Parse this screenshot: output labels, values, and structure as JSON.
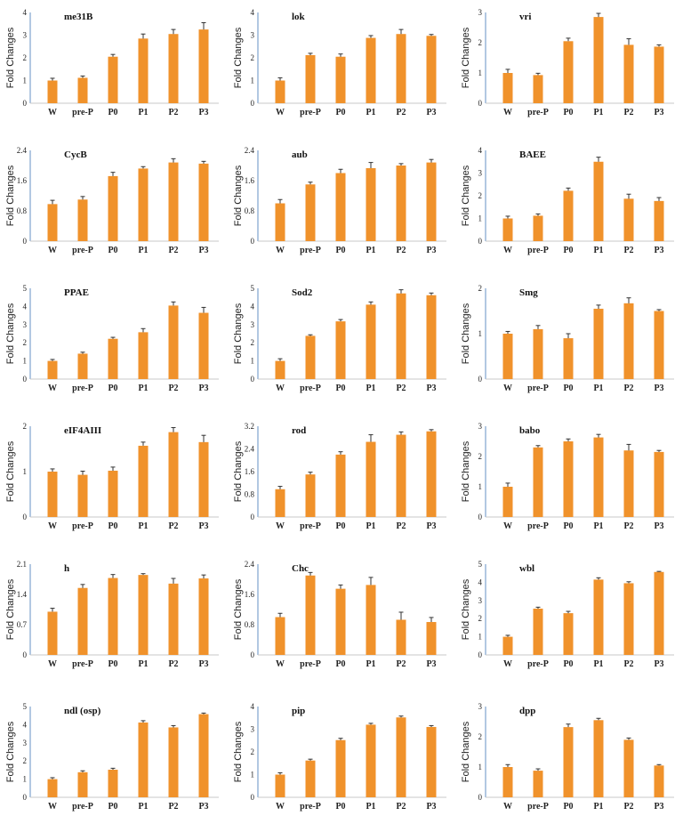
{
  "style": {
    "bar_color": "#f0922b",
    "axis_color": "#7fa3cf",
    "error_color": "#333333"
  },
  "chart_data": [
    {
      "type": "bar",
      "title": "me31B",
      "ylabel": "Fold Changes",
      "categories": [
        "W",
        "pre-P",
        "P0",
        "P1",
        "P2",
        "P3"
      ],
      "values": [
        1.0,
        1.12,
        2.05,
        2.85,
        3.05,
        3.25
      ],
      "errors": [
        0.1,
        0.08,
        0.1,
        0.2,
        0.2,
        0.3
      ],
      "ylim": [
        0,
        4
      ],
      "yticks": [
        "0",
        "1",
        "2",
        "3",
        "4"
      ]
    },
    {
      "type": "bar",
      "title": "lok",
      "ylabel": "Fold Changes",
      "categories": [
        "W",
        "pre-P",
        "P0",
        "P1",
        "P2",
        "P3"
      ],
      "values": [
        1.0,
        2.12,
        2.05,
        2.88,
        3.05,
        2.97
      ],
      "errors": [
        0.12,
        0.08,
        0.12,
        0.1,
        0.2,
        0.06
      ],
      "ylim": [
        0,
        4
      ],
      "yticks": [
        "0",
        "1",
        "2",
        "3",
        "4"
      ]
    },
    {
      "type": "bar",
      "title": "vri",
      "ylabel": "Fold Changes",
      "categories": [
        "W",
        "pre-P",
        "P0",
        "P1",
        "P2",
        "P3"
      ],
      "values": [
        1.0,
        0.93,
        2.05,
        2.85,
        1.93,
        1.87
      ],
      "errors": [
        0.12,
        0.06,
        0.1,
        0.12,
        0.2,
        0.06
      ],
      "ylim": [
        0,
        3
      ],
      "yticks": [
        "0",
        "1",
        "2",
        "3"
      ]
    },
    {
      "type": "bar",
      "title": "CycB",
      "ylabel": "Fold Changes",
      "categories": [
        "W",
        "pre-P",
        "P0",
        "P1",
        "P2",
        "P3"
      ],
      "values": [
        0.98,
        1.1,
        1.72,
        1.92,
        2.08,
        2.05
      ],
      "errors": [
        0.1,
        0.08,
        0.1,
        0.05,
        0.1,
        0.06
      ],
      "ylim": [
        0,
        2.4
      ],
      "yticks": [
        "0",
        "0.8",
        "1.6",
        "2.4"
      ]
    },
    {
      "type": "bar",
      "title": "aub",
      "ylabel": "Fold Changes",
      "categories": [
        "W",
        "pre-P",
        "P0",
        "P1",
        "P2",
        "P3"
      ],
      "values": [
        1.0,
        1.5,
        1.8,
        1.93,
        2.0,
        2.08
      ],
      "errors": [
        0.1,
        0.06,
        0.1,
        0.15,
        0.05,
        0.08
      ],
      "ylim": [
        0,
        2.4
      ],
      "yticks": [
        "0",
        "0.8",
        "1.6",
        "2.4"
      ]
    },
    {
      "type": "bar",
      "title": "BAEE",
      "ylabel": "Fold Changes",
      "categories": [
        "W",
        "pre-P",
        "P0",
        "P1",
        "P2",
        "P3"
      ],
      "values": [
        1.0,
        1.12,
        2.22,
        3.5,
        1.87,
        1.77
      ],
      "errors": [
        0.1,
        0.08,
        0.12,
        0.2,
        0.2,
        0.15
      ],
      "ylim": [
        0,
        4
      ],
      "yticks": [
        "0",
        "1",
        "2",
        "3",
        "4"
      ]
    },
    {
      "type": "bar",
      "title": "PPAE",
      "ylabel": "Fold Changes",
      "categories": [
        "W",
        "pre-P",
        "P0",
        "P1",
        "P2",
        "P3"
      ],
      "values": [
        1.0,
        1.4,
        2.22,
        2.58,
        4.05,
        3.65
      ],
      "errors": [
        0.08,
        0.08,
        0.08,
        0.2,
        0.2,
        0.3
      ],
      "ylim": [
        0,
        5
      ],
      "yticks": [
        "0",
        "1",
        "2",
        "3",
        "4",
        "5"
      ]
    },
    {
      "type": "bar",
      "title": "Sod2",
      "ylabel": "Fold Changes",
      "categories": [
        "W",
        "pre-P",
        "P0",
        "P1",
        "P2",
        "P3"
      ],
      "values": [
        1.0,
        2.38,
        3.18,
        4.1,
        4.72,
        4.62
      ],
      "errors": [
        0.12,
        0.06,
        0.1,
        0.15,
        0.2,
        0.12
      ],
      "ylim": [
        0,
        5
      ],
      "yticks": [
        "0",
        "1",
        "2",
        "3",
        "4",
        "5"
      ]
    },
    {
      "type": "bar",
      "title": "Smg",
      "ylabel": "Fold Changes",
      "categories": [
        "W",
        "pre-P",
        "P0",
        "P1",
        "P2",
        "P3"
      ],
      "values": [
        1.0,
        1.1,
        0.9,
        1.55,
        1.67,
        1.5
      ],
      "errors": [
        0.05,
        0.08,
        0.1,
        0.08,
        0.12,
        0.03
      ],
      "ylim": [
        0,
        2
      ],
      "yticks": [
        "0",
        "1",
        "2"
      ]
    },
    {
      "type": "bar",
      "title": "eIF4AIII",
      "ylabel": "Fold Changes",
      "categories": [
        "W",
        "pre-P",
        "P0",
        "P1",
        "P2",
        "P3"
      ],
      "values": [
        1.0,
        0.93,
        1.02,
        1.57,
        1.87,
        1.65
      ],
      "errors": [
        0.06,
        0.08,
        0.08,
        0.08,
        0.1,
        0.15
      ],
      "ylim": [
        0,
        2
      ],
      "yticks": [
        "0",
        "1",
        "2"
      ]
    },
    {
      "type": "bar",
      "title": "rod",
      "ylabel": "Fold Changes",
      "categories": [
        "W",
        "pre-P",
        "P0",
        "P1",
        "P2",
        "P3"
      ],
      "values": [
        0.98,
        1.5,
        2.2,
        2.65,
        2.9,
        3.02
      ],
      "errors": [
        0.1,
        0.08,
        0.1,
        0.25,
        0.1,
        0.06
      ],
      "ylim": [
        0,
        3.2
      ],
      "yticks": [
        "0",
        "0.8",
        "1.6",
        "2.4",
        "3.2"
      ]
    },
    {
      "type": "bar",
      "title": "babo",
      "ylabel": "Fold Changes",
      "categories": [
        "W",
        "pre-P",
        "P0",
        "P1",
        "P2",
        "P3"
      ],
      "values": [
        1.0,
        2.3,
        2.5,
        2.63,
        2.2,
        2.15
      ],
      "errors": [
        0.12,
        0.06,
        0.08,
        0.1,
        0.2,
        0.05
      ],
      "ylim": [
        0,
        3
      ],
      "yticks": [
        "0",
        "1",
        "2",
        "3"
      ]
    },
    {
      "type": "bar",
      "title": "h",
      "ylabel": "Fold Changes",
      "categories": [
        "W",
        "pre-P",
        "P0",
        "P1",
        "P2",
        "P3"
      ],
      "values": [
        1.0,
        1.55,
        1.78,
        1.85,
        1.65,
        1.77
      ],
      "errors": [
        0.08,
        0.08,
        0.08,
        0.03,
        0.12,
        0.08
      ],
      "ylim": [
        0,
        2.1
      ],
      "yticks": [
        "0",
        "0.7",
        "1.4",
        "2.1"
      ]
    },
    {
      "type": "bar",
      "title": "Chc",
      "ylabel": "Fold Changes",
      "categories": [
        "W",
        "pre-P",
        "P0",
        "P1",
        "P2",
        "P3"
      ],
      "values": [
        1.0,
        2.1,
        1.75,
        1.85,
        0.93,
        0.87
      ],
      "errors": [
        0.1,
        0.08,
        0.1,
        0.2,
        0.2,
        0.12
      ],
      "ylim": [
        0,
        2.4
      ],
      "yticks": [
        "0",
        "0.8",
        "1.6",
        "2.4"
      ]
    },
    {
      "type": "bar",
      "title": "wbl",
      "ylabel": "Fold Changes",
      "categories": [
        "W",
        "pre-P",
        "P0",
        "P1",
        "P2",
        "P3"
      ],
      "values": [
        1.0,
        2.55,
        2.3,
        4.15,
        3.95,
        4.57
      ],
      "errors": [
        0.08,
        0.08,
        0.1,
        0.1,
        0.08,
        0.03
      ],
      "ylim": [
        0,
        5
      ],
      "yticks": [
        "0",
        "1",
        "2",
        "3",
        "4",
        "5"
      ]
    },
    {
      "type": "bar",
      "title": "ndl (osp)",
      "ylabel": "Fold Changes",
      "categories": [
        "W",
        "pre-P",
        "P0",
        "P1",
        "P2",
        "P3"
      ],
      "values": [
        1.0,
        1.38,
        1.52,
        4.12,
        3.85,
        4.58
      ],
      "errors": [
        0.08,
        0.08,
        0.08,
        0.1,
        0.1,
        0.06
      ],
      "ylim": [
        0,
        5
      ],
      "yticks": [
        "0",
        "1",
        "2",
        "3",
        "4",
        "5"
      ]
    },
    {
      "type": "bar",
      "title": "pip",
      "ylabel": "Fold Changes",
      "categories": [
        "W",
        "pre-P",
        "P0",
        "P1",
        "P2",
        "P3"
      ],
      "values": [
        1.0,
        1.62,
        2.52,
        3.2,
        3.52,
        3.1
      ],
      "errors": [
        0.08,
        0.06,
        0.08,
        0.06,
        0.06,
        0.06
      ],
      "ylim": [
        0,
        4
      ],
      "yticks": [
        "0",
        "1",
        "2",
        "3",
        "4"
      ]
    },
    {
      "type": "bar",
      "title": "dpp",
      "ylabel": "Fold Changes",
      "categories": [
        "W",
        "pre-P",
        "P0",
        "P1",
        "P2",
        "P3"
      ],
      "values": [
        1.0,
        0.88,
        2.32,
        2.55,
        1.9,
        1.05
      ],
      "errors": [
        0.08,
        0.06,
        0.1,
        0.06,
        0.06,
        0.03
      ],
      "ylim": [
        0,
        3
      ],
      "yticks": [
        "0",
        "1",
        "2",
        "3"
      ]
    }
  ]
}
